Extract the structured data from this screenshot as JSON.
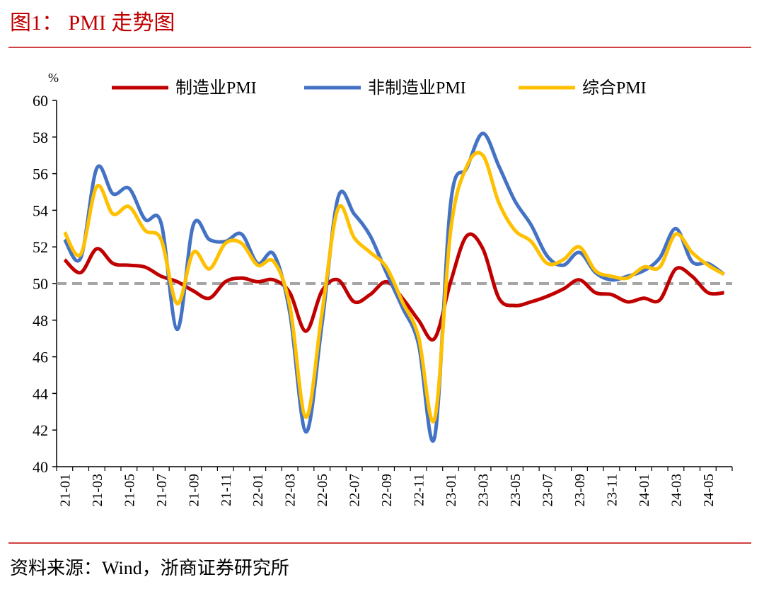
{
  "chart_data": {
    "type": "line",
    "title": "图1： PMI 走势图",
    "ylabel": "%",
    "source": "资料来源：Wind，浙商证券研究所",
    "categories": [
      "21-01",
      null,
      "21-03",
      null,
      "21-05",
      null,
      "21-07",
      null,
      "21-09",
      null,
      "21-11",
      null,
      "22-01",
      null,
      "22-03",
      null,
      "22-05",
      null,
      "22-07",
      null,
      "22-09",
      null,
      "22-11",
      null,
      "23-01",
      null,
      "23-03",
      null,
      "23-05",
      null,
      "23-07",
      null,
      "23-09",
      null,
      "23-11",
      null,
      "24-01",
      null,
      "24-03",
      null,
      "24-05",
      null
    ],
    "series": [
      {
        "name": "制造业PMI",
        "color": "#c00000",
        "values": [
          51.3,
          50.6,
          51.9,
          51.1,
          51.0,
          50.9,
          50.4,
          50.1,
          49.6,
          49.2,
          50.1,
          50.3,
          50.1,
          50.2,
          49.5,
          47.4,
          49.6,
          50.2,
          49.0,
          49.4,
          50.1,
          49.2,
          48.0,
          47.0,
          50.1,
          52.6,
          51.9,
          49.2,
          48.8,
          49.0,
          49.3,
          49.7,
          50.2,
          49.5,
          49.4,
          49.0,
          49.2,
          49.1,
          50.8,
          50.4,
          49.5,
          49.5
        ]
      },
      {
        "name": "非制造业PMI",
        "color": "#4472c4",
        "values": [
          52.4,
          51.4,
          56.3,
          54.9,
          55.2,
          53.5,
          53.3,
          47.5,
          53.2,
          52.4,
          52.3,
          52.7,
          51.1,
          51.6,
          48.4,
          41.9,
          47.8,
          54.7,
          53.8,
          52.6,
          50.6,
          48.7,
          46.7,
          41.6,
          54.4,
          56.3,
          58.2,
          56.4,
          54.5,
          53.2,
          51.5,
          51.0,
          51.7,
          50.6,
          50.2,
          50.4,
          50.7,
          51.4,
          53.0,
          51.2,
          51.1,
          50.5
        ]
      },
      {
        "name": "综合PMI",
        "color": "#ffc000",
        "values": [
          52.8,
          51.6,
          55.3,
          53.8,
          54.2,
          52.9,
          52.4,
          48.9,
          51.7,
          50.8,
          52.2,
          52.2,
          51.0,
          51.2,
          48.8,
          42.7,
          48.4,
          54.1,
          52.5,
          51.7,
          50.9,
          49.0,
          47.1,
          42.6,
          52.9,
          56.4,
          57.0,
          54.4,
          52.9,
          52.3,
          51.1,
          51.3,
          52.0,
          50.7,
          50.4,
          50.3,
          50.9,
          50.9,
          52.7,
          51.7,
          51.0,
          50.5
        ]
      }
    ],
    "reference_line": {
      "value": 50,
      "color": "#a6a6a6"
    },
    "ylim": [
      40,
      60
    ],
    "yticks": [
      40,
      42,
      44,
      46,
      48,
      50,
      52,
      54,
      56,
      58,
      60
    ]
  }
}
